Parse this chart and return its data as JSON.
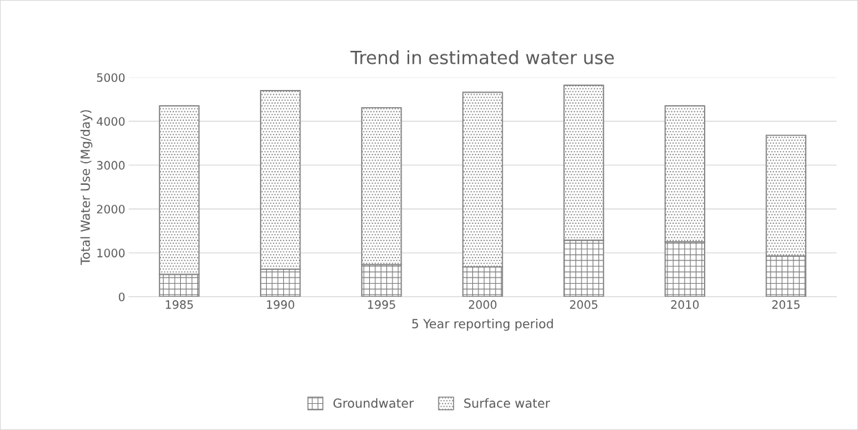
{
  "chart_data": {
    "type": "bar",
    "title": "Trend in estimated water use",
    "xlabel": "5 Year reporting period",
    "ylabel": "Total Water Use (Mg/day)",
    "categories": [
      "1985",
      "1990",
      "1995",
      "2000",
      "2005",
      "2010",
      "2015"
    ],
    "stacked": true,
    "series": [
      {
        "name": "Groundwater",
        "color": "#7f7f7f",
        "values": [
          510,
          630,
          730,
          680,
          1290,
          1250,
          930
        ]
      },
      {
        "name": "Surface water",
        "color": "#7f7f7f",
        "values": [
          3840,
          4070,
          3580,
          3980,
          3530,
          3100,
          2750
        ]
      }
    ],
    "ylim": [
      0,
      5000
    ],
    "yticks": [
      0,
      1000,
      2000,
      3000,
      4000,
      5000
    ],
    "grid": "y",
    "legend": "bottom"
  }
}
